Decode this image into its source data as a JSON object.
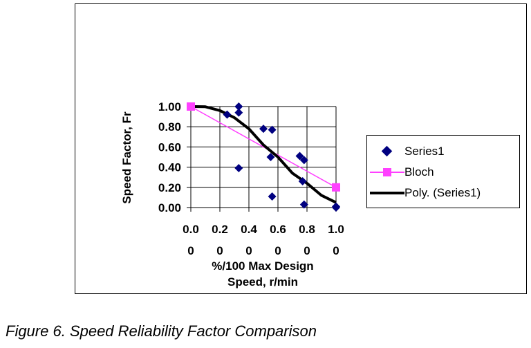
{
  "chart_data": {
    "type": "scatter",
    "title": "",
    "xlabel": [
      "%/100 Max Design",
      "Speed, r/min"
    ],
    "ylabel": "Speed Factor, Fr",
    "xlim": [
      0,
      1
    ],
    "ylim": [
      0,
      1
    ],
    "grid": true,
    "legend_placement": "right",
    "x_ticks": [
      [
        "0.0",
        "0"
      ],
      [
        "0.2",
        "0"
      ],
      [
        "0.4",
        "0"
      ],
      [
        "0.6",
        "0"
      ],
      [
        "0.8",
        "0"
      ],
      [
        "1.0",
        "0"
      ]
    ],
    "x_tick_values": [
      0,
      0.2,
      0.4,
      0.6,
      0.8,
      1.0
    ],
    "y_ticks": [
      "0.00",
      "0.20",
      "0.40",
      "0.60",
      "0.80",
      "1.00"
    ],
    "y_tick_values": [
      0,
      0.2,
      0.4,
      0.6,
      0.8,
      1.0
    ],
    "series": [
      {
        "name": "Series1",
        "kind": "scatter",
        "marker": "diamond",
        "color": "#000080",
        "x": [
          0.33,
          0.33,
          0.25,
          0.5,
          0.56,
          0.55,
          0.75,
          0.78,
          0.33,
          0.77,
          0.56,
          0.78,
          1.0,
          1.0
        ],
        "y": [
          1.0,
          0.94,
          0.92,
          0.78,
          0.77,
          0.5,
          0.51,
          0.47,
          0.39,
          0.26,
          0.11,
          0.03,
          0.01,
          0.0
        ]
      },
      {
        "name": "Bloch",
        "kind": "line",
        "marker": "square",
        "color": "#ff40ff",
        "x": [
          0,
          1
        ],
        "y": [
          1.0,
          0.2
        ]
      },
      {
        "name": "Poly. (Series1)",
        "kind": "trendline",
        "color": "#000000",
        "x": [
          0,
          0.1,
          0.2,
          0.3,
          0.4,
          0.5,
          0.6,
          0.7,
          0.8,
          0.9,
          1.0
        ],
        "y": [
          1.0,
          0.998,
          0.96,
          0.89,
          0.78,
          0.62,
          0.5,
          0.34,
          0.24,
          0.12,
          0.05
        ]
      }
    ]
  },
  "caption": "Figure 6. Speed Reliability Factor Comparison"
}
